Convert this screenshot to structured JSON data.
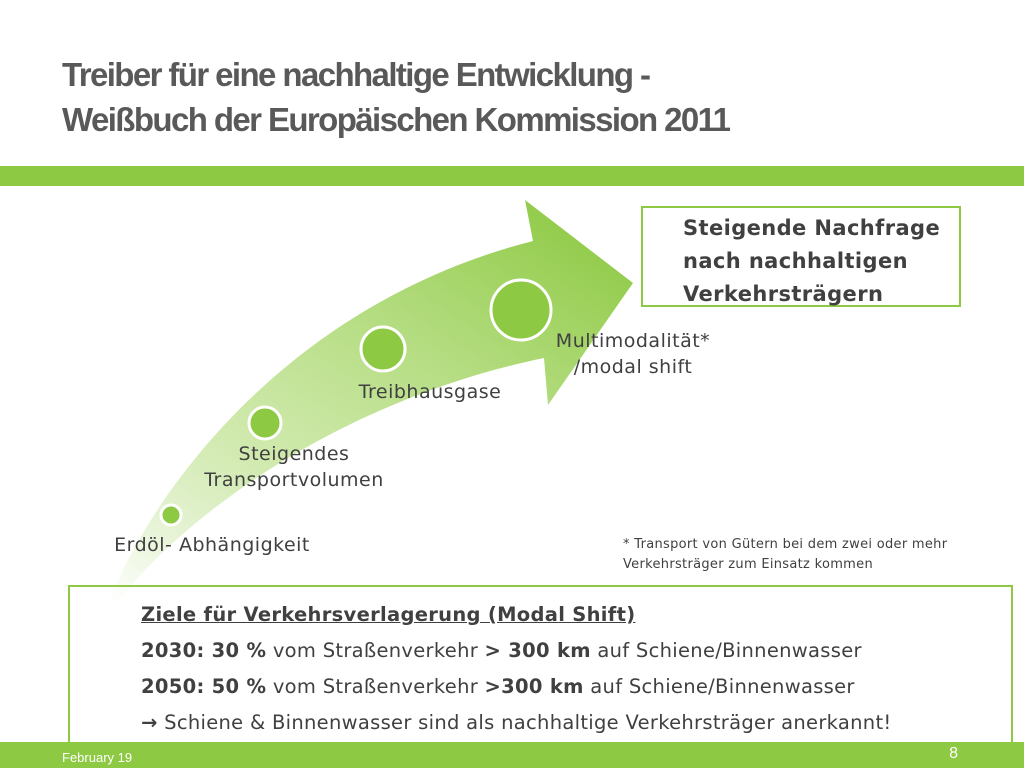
{
  "slide": {
    "title_line1": "Treiber für eine nachhaltige Entwicklung -",
    "title_line2": "Weißbuch der Europäischen Kommission 2011",
    "accent_color": "#8dc943"
  },
  "arrow": {
    "milestones": [
      {
        "label": "Erdöl- Abhängigkeit"
      },
      {
        "label_line1": "Steigendes",
        "label_line2": "Transportvolumen"
      },
      {
        "label": "Treibhausgase"
      },
      {
        "label_line1": "Multimodalität*",
        "label_line2": "/modal shift"
      }
    ]
  },
  "demand_box": {
    "line1": "Steigende Nachfrage",
    "line2": "nach nachhaltigen",
    "line3": "Verkehrsträgern"
  },
  "footnote": {
    "line1": "* Transport von Gütern bei dem zwei oder mehr",
    "line2": "Verkehrsträger zum Einsatz kommen"
  },
  "goals": {
    "heading": "Ziele für Verkehrsverlagerung (Modal Shift)",
    "row2030": {
      "year_pct": "2030: 30 %",
      "text1": " vom Straßenverkehr ",
      "km": "> 300 km",
      "text2": " auf Schiene/Binnenwasser"
    },
    "row2050": {
      "year_pct": "2050: 50 %",
      "text1": " vom Straßenverkehr ",
      "km": ">300 km",
      "text2": " auf Schiene/Binnenwasser"
    },
    "conclusion_arrow": "→",
    "conclusion": " Schiene & Binnenwasser sind als nachhaltige Verkehrsträger anerkannt!"
  },
  "footer": {
    "date": "February 19",
    "page": "8"
  }
}
